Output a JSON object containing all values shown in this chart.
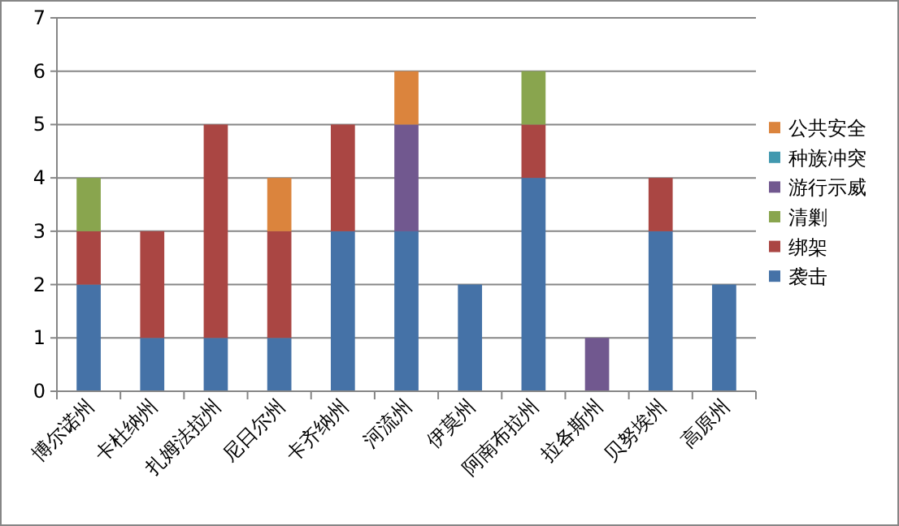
{
  "chart_data": {
    "type": "bar",
    "stacked": true,
    "categories": [
      "博尔诺州",
      "卡杜纳州",
      "扎姆法拉州",
      "尼日尔州",
      "卡齐纳州",
      "河流州",
      "伊莫州",
      "阿南布拉州",
      "拉各斯州",
      "贝努埃州",
      "高原州"
    ],
    "series": [
      {
        "name": "袭击",
        "color": "#4572a7",
        "values": [
          2,
          1,
          1,
          1,
          3,
          3,
          2,
          4,
          null,
          3,
          2
        ]
      },
      {
        "name": "绑架",
        "color": "#aa4643",
        "values": [
          1,
          2,
          4,
          2,
          2,
          null,
          null,
          1,
          null,
          1,
          null
        ]
      },
      {
        "name": "清剿",
        "color": "#89a54e",
        "values": [
          1,
          null,
          null,
          null,
          null,
          null,
          null,
          1,
          null,
          null,
          null
        ]
      },
      {
        "name": "游行示威",
        "color": "#71588f",
        "values": [
          null,
          null,
          null,
          null,
          null,
          2,
          null,
          null,
          1,
          null,
          null
        ]
      },
      {
        "name": "种族冲突",
        "color": "#4198af",
        "values": [
          null,
          null,
          null,
          null,
          null,
          null,
          null,
          null,
          null,
          null,
          null
        ]
      },
      {
        "name": "公共安全",
        "color": "#db843d",
        "values": [
          null,
          null,
          null,
          1,
          null,
          1,
          null,
          null,
          null,
          null,
          null
        ]
      }
    ],
    "ylim": [
      0,
      7
    ],
    "yticks": [
      0,
      1,
      2,
      3,
      4,
      5,
      6,
      7
    ],
    "grid": "y",
    "legend": "right"
  }
}
